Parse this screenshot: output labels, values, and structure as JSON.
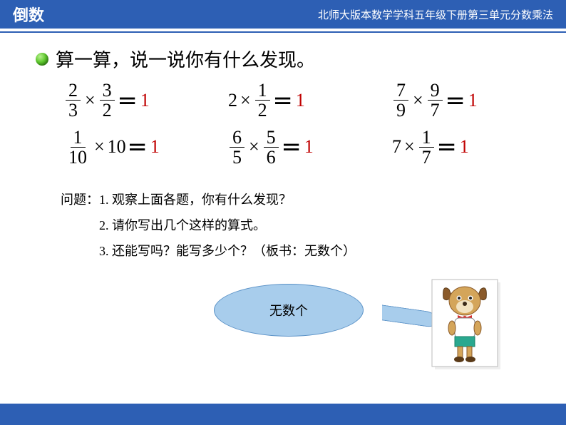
{
  "header": {
    "title": "倒数",
    "right": "北师大版本数学学科五年级下册第三单元分数乘法",
    "bg_color": "#2d5fb4",
    "text_color": "#ffffff"
  },
  "instruction": "算一算，说一说你有什么发现。",
  "equations": [
    {
      "lhs": [
        {
          "type": "frac",
          "n": "2",
          "d": "3"
        },
        {
          "type": "op",
          "v": "×"
        },
        {
          "type": "frac",
          "n": "3",
          "d": "2"
        }
      ],
      "answer": "1"
    },
    {
      "lhs": [
        {
          "type": "int",
          "v": "2"
        },
        {
          "type": "op",
          "v": "×"
        },
        {
          "type": "frac",
          "n": "1",
          "d": "2"
        }
      ],
      "answer": "1"
    },
    {
      "lhs": [
        {
          "type": "frac",
          "n": "7",
          "d": "9"
        },
        {
          "type": "op",
          "v": "×"
        },
        {
          "type": "frac",
          "n": "9",
          "d": "7"
        }
      ],
      "answer": "1"
    },
    {
      "lhs": [
        {
          "type": "frac",
          "n": "1",
          "d": "10"
        },
        {
          "type": "op",
          "v": "×"
        },
        {
          "type": "int",
          "v": "10"
        }
      ],
      "answer": "1"
    },
    {
      "lhs": [
        {
          "type": "frac",
          "n": "6",
          "d": "5"
        },
        {
          "type": "op",
          "v": "×"
        },
        {
          "type": "frac",
          "n": "5",
          "d": "6"
        }
      ],
      "answer": "1"
    },
    {
      "lhs": [
        {
          "type": "int",
          "v": "7"
        },
        {
          "type": "op",
          "v": "×"
        },
        {
          "type": "frac",
          "n": "1",
          "d": "7"
        }
      ],
      "answer": "1"
    }
  ],
  "questions": {
    "label": "问题：",
    "items": [
      "1. 观察上面各题，你有什么发现？",
      "2. 请你写出几个这样的算式。",
      "3. 还能写吗？能写多少个？（板书：无数个）"
    ]
  },
  "bubble": {
    "text": "无数个",
    "bg_color": "#a8cdec",
    "border_color": "#5b92c7"
  },
  "answer_color": "#c00000",
  "bullet_gradient": [
    "#b8f090",
    "#5fc92e",
    "#277f0c"
  ]
}
